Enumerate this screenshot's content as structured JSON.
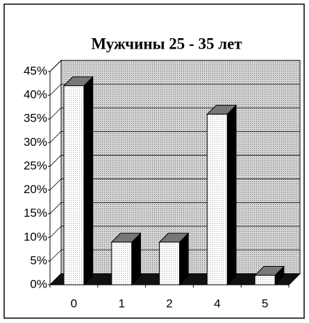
{
  "chart_data": {
    "type": "bar",
    "title": "Мужчины 25 - 35 лет",
    "categories": [
      "0",
      "1",
      "2",
      "4",
      "5"
    ],
    "values": [
      42,
      9,
      9,
      36,
      2
    ],
    "ylim": [
      0,
      45
    ],
    "yticks": [
      {
        "value": 0,
        "label": "0%"
      },
      {
        "value": 5,
        "label": "5%"
      },
      {
        "value": 10,
        "label": "10%"
      },
      {
        "value": 15,
        "label": "15%"
      },
      {
        "value": 20,
        "label": "20%"
      },
      {
        "value": 25,
        "label": "25%"
      },
      {
        "value": 30,
        "label": "30%"
      },
      {
        "value": 35,
        "label": "35%"
      },
      {
        "value": 40,
        "label": "40%"
      },
      {
        "value": 45,
        "label": "45%"
      }
    ],
    "grid": true
  }
}
